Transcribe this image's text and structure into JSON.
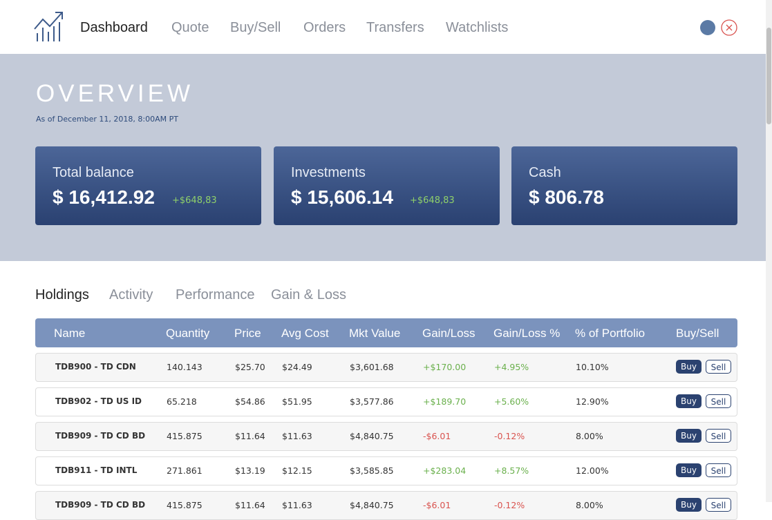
{
  "nav": {
    "items": [
      "Dashboard",
      "Quote",
      "Buy/Sell",
      "Orders",
      "Transfers",
      "Watchlists"
    ]
  },
  "overview": {
    "title": "OVERVIEW",
    "subtitle": "As of December 11, 2018, 8:00AM PT",
    "cards": [
      {
        "label": "Total balance",
        "value": "$ 16,412.92",
        "change": "+$648,83"
      },
      {
        "label": "Investments",
        "value": "$ 15,606.14",
        "change": "+$648,83"
      },
      {
        "label": "Cash",
        "value": "$ 806.78"
      }
    ]
  },
  "tabs": [
    "Holdings",
    "Activity",
    "Performance",
    "Gain & Loss"
  ],
  "table": {
    "columns": [
      "Name",
      "Quantity",
      "Price",
      "Avg Cost",
      "Mkt Value",
      "Gain/Loss",
      "Gain/Loss %",
      "% of Portfolio",
      "Buy/Sell"
    ],
    "buy_label": "Buy",
    "sell_label": "Sell",
    "rows": [
      [
        "TDB900 - TD CDN",
        "140.143",
        "$25.70",
        "$24.49",
        "$3,601.68",
        "+$170.00",
        "+4.95%",
        "10.10%"
      ],
      [
        "TDB902 - TD US ID",
        "65.218",
        "$54.86",
        "$51.95",
        "$3,577.86",
        "+$189.70",
        "+5.60%",
        "12.90%"
      ],
      [
        "TDB909 - TD CD BD",
        "415.875",
        "$11.64",
        "$11.63",
        "$4,840.75",
        "-$6.01",
        "-0.12%",
        "8.00%"
      ],
      [
        "TDB911 - TD INTL",
        "271.861",
        "$13.19",
        "$12.15",
        "$3,585.85",
        "+$283.04",
        "+8.57%",
        "12.00%"
      ],
      [
        "TDB909 - TD CD BD",
        "415.875",
        "$11.64",
        "$11.63",
        "$4,840.75",
        "-$6.01",
        "-0.12%",
        "8.00%"
      ]
    ]
  }
}
